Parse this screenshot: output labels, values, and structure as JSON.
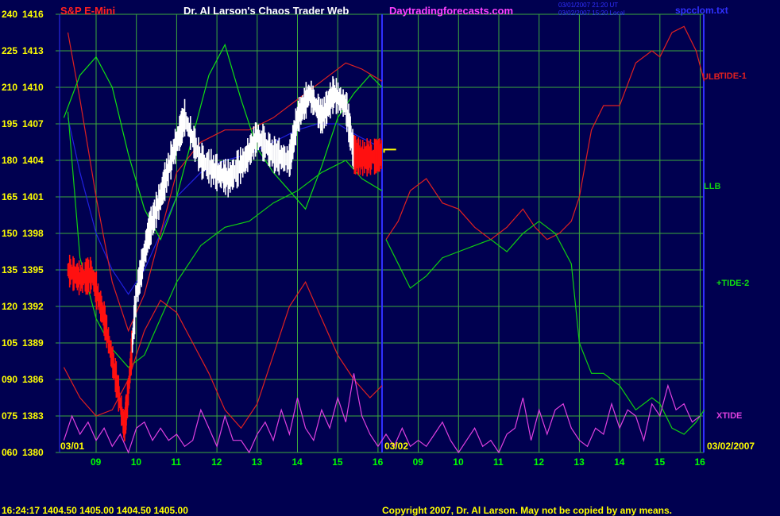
{
  "header": {
    "instrument": "S&P E-Mini",
    "title": "Dr. Al Larson's Chaos Trader Web",
    "site": "Daytradingforecasts.com",
    "timestamp_utc": "03/01/2007 21:20 UT",
    "timestamp_local": "03/02/2007 15:20 Local",
    "filename": "spcclom.txt"
  },
  "footer": {
    "quote": "16:24:17  1404.50 1405.00 1404.50 1405.00",
    "copyright": "Copyright 2007, Dr. Al Larson. May not be copied by any means."
  },
  "date_labels": {
    "left": "03/01",
    "middle": "03/02",
    "right": "03/02/2007"
  },
  "colors": {
    "background": "#000050",
    "grid": "#3caa3c",
    "divider": "#3030ff",
    "price_up": "#ffffff",
    "price_down": "#ff1010",
    "hours": "#00ff00",
    "yaxis": "#ffff00",
    "ulb": "#e02020",
    "tide1": "#e02020",
    "llb": "#10d010",
    "tide2": "#10e010",
    "xtide": "#e040e0",
    "average": "#2020e0"
  },
  "chart_data": {
    "type": "line",
    "y_axis": {
      "ticks_osc": [
        "240",
        "225",
        "210",
        "195",
        "180",
        "165",
        "150",
        "135",
        "120",
        "105",
        "090",
        "075",
        "060"
      ],
      "ticks_price": [
        "1416",
        "1413",
        "1410",
        "1407",
        "1404",
        "1401",
        "1398",
        "1395",
        "1392",
        "1389",
        "1386",
        "1383",
        "1380"
      ],
      "price_range": [
        1380,
        1416
      ]
    },
    "x_axis": {
      "day1_hours": [
        "09",
        "10",
        "11",
        "12",
        "13",
        "14",
        "15",
        "16"
      ],
      "day2_hours": [
        "09",
        "10",
        "11",
        "12",
        "13",
        "14",
        "15",
        "16"
      ]
    },
    "series_labels": {
      "ulb": "ULB",
      "tide1": "TIDE-1",
      "llb": "LLB",
      "tide2": "+TIDE-2",
      "xtide": "XTIDE"
    },
    "price_day1": {
      "x_hours": [
        8.3,
        8.6,
        8.9,
        9.2,
        9.5,
        9.7,
        9.8,
        10.0,
        10.3,
        10.6,
        10.9,
        11.2,
        11.6,
        12.0,
        12.3,
        12.7,
        13.0,
        13.4,
        13.8,
        14.0,
        14.3,
        14.6,
        14.9,
        15.2,
        15.4,
        15.6,
        15.9,
        16.1
      ],
      "price": [
        1395.0,
        1394.3,
        1394.6,
        1391.0,
        1386.0,
        1382.0,
        1385.0,
        1393.0,
        1398.0,
        1401.0,
        1404.5,
        1407.5,
        1404.0,
        1403.0,
        1402.5,
        1404.0,
        1406.0,
        1404.5,
        1404.0,
        1407.5,
        1409.5,
        1407.5,
        1409.5,
        1408.5,
        1404.5,
        1404.2,
        1404.3,
        1404.5
      ]
    },
    "moving_average_day1": {
      "x_hours": [
        8.3,
        8.6,
        9.0,
        9.4,
        9.8,
        10.2,
        10.6,
        11.0,
        11.6,
        12.2,
        12.8,
        13.4,
        14.0,
        14.5,
        15.0,
        15.5,
        16.1
      ],
      "price": [
        1407.5,
        1403.0,
        1398.0,
        1395.0,
        1393.0,
        1395.0,
        1398.0,
        1401.0,
        1403.0,
        1404.0,
        1404.5,
        1405.5,
        1406.5,
        1407.0,
        1407.0,
        1406.0,
        1405.0
      ]
    },
    "ulb_day1": {
      "x_hours": [
        8.3,
        8.6,
        9.0,
        9.4,
        9.8,
        10.2,
        10.6,
        11.0,
        11.6,
        12.2,
        12.8,
        13.4,
        14.0,
        14.6,
        15.2,
        15.6,
        16.1
      ],
      "price": [
        1414.5,
        1409.0,
        1401.0,
        1394.0,
        1390.0,
        1393.0,
        1398.0,
        1403.0,
        1405.5,
        1406.5,
        1406.5,
        1407.5,
        1409.0,
        1410.5,
        1412.0,
        1411.5,
        1410.5
      ]
    },
    "llb_day1": {
      "x_hours": [
        8.3,
        8.6,
        9.0,
        9.4,
        9.8,
        10.2,
        10.6,
        11.0,
        11.6,
        12.2,
        12.8,
        13.4,
        14.0,
        14.6,
        15.2,
        15.6,
        16.1
      ],
      "price": [
        1408.0,
        1396.0,
        1391.0,
        1388.5,
        1387.0,
        1388.0,
        1391.0,
        1394.0,
        1397.0,
        1398.5,
        1399.0,
        1400.5,
        1401.5,
        1403.0,
        1404.0,
        1402.5,
        1401.5
      ]
    },
    "ulb_day2": {
      "x_hours": [
        8.2,
        8.5,
        8.8,
        9.2,
        9.6,
        10.0,
        10.4,
        10.8,
        11.2,
        11.6,
        11.9,
        12.2,
        12.5,
        12.8,
        13.0,
        13.3,
        13.6,
        14.0,
        14.4,
        14.8,
        15.0,
        15.3,
        15.6,
        15.9,
        16.1
      ],
      "price": [
        1397.5,
        1399.0,
        1401.5,
        1402.5,
        1400.5,
        1400.0,
        1398.5,
        1397.5,
        1398.5,
        1400.0,
        1398.5,
        1397.5,
        1398.0,
        1399.0,
        1401.0,
        1406.5,
        1408.5,
        1408.5,
        1412.0,
        1413.0,
        1412.5,
        1414.5,
        1415.0,
        1413.0,
        1410.5
      ]
    },
    "llb_day2": {
      "x_hours": [
        8.2,
        8.5,
        8.8,
        9.2,
        9.6,
        10.0,
        10.4,
        10.8,
        11.2,
        11.6,
        12.0,
        12.4,
        12.8,
        13.0,
        13.3,
        13.6,
        14.0,
        14.4,
        14.8,
        15.0,
        15.3,
        15.6,
        15.9,
        16.1
      ],
      "price": [
        1397.5,
        1395.5,
        1393.5,
        1394.5,
        1396.0,
        1396.5,
        1397.0,
        1397.5,
        1396.5,
        1398.0,
        1399.0,
        1398.0,
        1395.5,
        1389.0,
        1386.5,
        1386.5,
        1385.5,
        1383.5,
        1384.5,
        1384.0,
        1382.0,
        1381.5,
        1382.5,
        1383.5
      ]
    },
    "tide1": {
      "x_hours": [
        8.2,
        8.6,
        9.0,
        9.4,
        9.8,
        10.2,
        10.6,
        11.0,
        11.4,
        11.8,
        12.2,
        12.6,
        13.0,
        13.4,
        13.8,
        14.2,
        14.6,
        15.0,
        15.4,
        15.8,
        16.1
      ],
      "price": [
        1387.0,
        1384.5,
        1383.0,
        1383.5,
        1386.0,
        1390.0,
        1392.5,
        1391.5,
        1389.0,
        1386.5,
        1383.5,
        1382.0,
        1384.0,
        1388.0,
        1392.0,
        1394.0,
        1391.0,
        1388.0,
        1386.0,
        1384.5,
        1385.5
      ]
    },
    "tide2": {
      "x_hours": [
        8.2,
        8.6,
        9.0,
        9.4,
        9.8,
        10.2,
        10.6,
        11.0,
        11.4,
        11.8,
        12.2,
        12.6,
        13.0,
        13.4,
        13.8,
        14.2,
        14.6,
        15.0,
        15.4,
        15.8,
        16.1
      ],
      "price": [
        1407.5,
        1411.0,
        1412.5,
        1410.0,
        1404.5,
        1400.0,
        1397.5,
        1401.0,
        1406.0,
        1411.0,
        1413.5,
        1409.0,
        1405.0,
        1403.0,
        1401.5,
        1400.0,
        1403.5,
        1407.5,
        1409.5,
        1411.0,
        1410.0
      ]
    },
    "xtide": {
      "x_hours": [
        8.2,
        8.4,
        8.6,
        8.8,
        9.0,
        9.2,
        9.4,
        9.6,
        9.8,
        10.0,
        10.2,
        10.4,
        10.6,
        10.8,
        11.0,
        11.2,
        11.4,
        11.6,
        11.8,
        12.0,
        12.2,
        12.4,
        12.6,
        12.8,
        13.0,
        13.2,
        13.4,
        13.6,
        13.8,
        14.0,
        14.2,
        14.4,
        14.6,
        14.8,
        15.0,
        15.2,
        15.4,
        15.6,
        15.8,
        16.0,
        16.2,
        16.4,
        16.6,
        16.8,
        17.0,
        17.2,
        17.4,
        17.6,
        17.8,
        18.0,
        18.2,
        18.4,
        18.6,
        18.8,
        19.0,
        19.2,
        19.4,
        19.6,
        19.8,
        20.0,
        20.2,
        20.4,
        20.6,
        20.8,
        21.0,
        21.2,
        21.4,
        21.6,
        21.8,
        22.0,
        22.2,
        22.4,
        22.6,
        22.8,
        23.0,
        23.2,
        23.4,
        23.6,
        23.8,
        24.0
      ],
      "price": [
        1381.0,
        1383.0,
        1381.5,
        1382.5,
        1381.0,
        1382.0,
        1380.5,
        1381.5,
        1380.0,
        1382.0,
        1382.5,
        1381.0,
        1382.0,
        1381.0,
        1381.5,
        1380.5,
        1381.0,
        1383.5,
        1382.0,
        1380.5,
        1383.0,
        1381.0,
        1381.0,
        1380.0,
        1381.5,
        1382.5,
        1381.0,
        1383.5,
        1381.5,
        1384.5,
        1382.0,
        1381.0,
        1383.5,
        1382.0,
        1384.5,
        1382.5,
        1386.5,
        1383.0,
        1381.5,
        1380.5,
        1381.5,
        1380.5,
        1382.0,
        1380.5,
        1381.0,
        1380.5,
        1381.5,
        1382.5,
        1381.0,
        1380.0,
        1381.0,
        1382.0,
        1380.5,
        1381.0,
        1380.0,
        1381.5,
        1382.0,
        1384.5,
        1381.0,
        1383.5,
        1381.5,
        1383.5,
        1384.0,
        1382.0,
        1381.0,
        1380.5,
        1382.0,
        1381.5,
        1384.0,
        1382.0,
        1383.5,
        1383.0,
        1381.0,
        1384.0,
        1383.0,
        1385.5,
        1383.5,
        1384.0,
        1382.5,
        1383.0
      ]
    }
  }
}
